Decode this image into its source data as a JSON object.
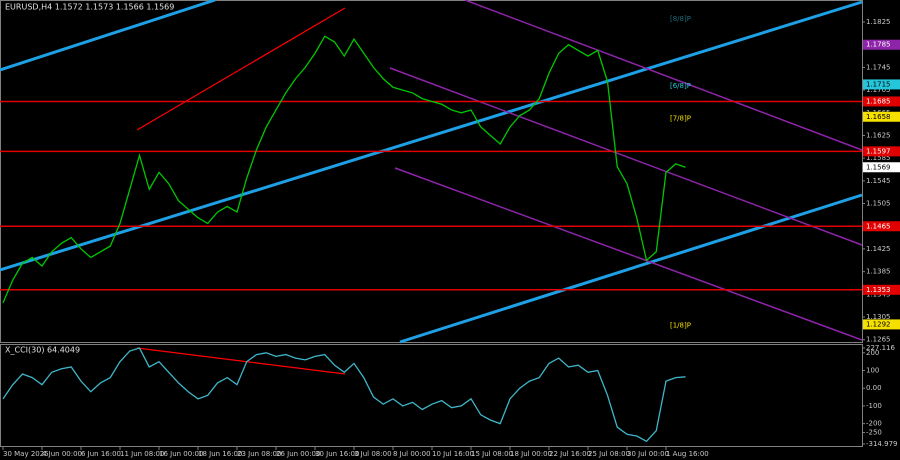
{
  "chart_data": [
    {
      "type": "line",
      "title": "EURUSD,H4  1.1572 1.1573 1.1566 1.1569",
      "categories": [
        "30 May 2025",
        null,
        null,
        null,
        "4 Jun 00:00",
        null,
        null,
        null,
        "6 Jun 16:00",
        null,
        null,
        null,
        "11 Jun 08:00",
        null,
        null,
        null,
        "16 Jun 00:00",
        null,
        null,
        null,
        "18 Jun 16:00",
        null,
        null,
        null,
        "23 Jun 08:00",
        null,
        null,
        null,
        "26 Jun 00:00",
        null,
        null,
        null,
        "30 Jun 16:00",
        null,
        null,
        null,
        "3 Jul 08:00",
        null,
        null,
        null,
        "8 Jul 00:00",
        null,
        null,
        null,
        "10 Jul 16:00",
        null,
        null,
        null,
        "15 Jul 08:00",
        null,
        null,
        null,
        "18 Jul 00:00",
        null,
        null,
        null,
        "22 Jul 16:00",
        null,
        null,
        null,
        "25 Jul 08:00",
        null,
        null,
        null,
        "30 Jul 00:00",
        null,
        null,
        null,
        "1 Aug 16:00",
        null,
        null
      ],
      "values": [
        1.133,
        1.137,
        1.14,
        1.141,
        1.1395,
        1.142,
        1.1435,
        1.1445,
        1.1425,
        1.141,
        1.142,
        1.143,
        1.147,
        1.153,
        1.159,
        1.153,
        1.156,
        1.154,
        1.151,
        1.1495,
        1.148,
        1.147,
        1.149,
        1.15,
        1.149,
        1.155,
        1.16,
        1.164,
        1.167,
        1.17,
        1.1725,
        1.1745,
        1.177,
        1.18,
        1.179,
        1.1765,
        1.1795,
        1.177,
        1.1745,
        1.1725,
        1.171,
        1.1705,
        1.17,
        1.169,
        1.1685,
        1.168,
        1.167,
        1.1665,
        1.167,
        1.164,
        1.1625,
        1.161,
        1.164,
        1.166,
        1.167,
        1.169,
        1.1735,
        1.177,
        1.1785,
        1.1775,
        1.1765,
        1.1775,
        1.172,
        1.157,
        1.154,
        1.148,
        1.1405,
        1.142,
        1.156,
        1.1575,
        1.1569
      ],
      "color": "#00c800",
      "ylim": [
        1.1261,
        1.1855
      ],
      "yticks": [
        1.1265,
        1.1305,
        1.1345,
        1.1385,
        1.1425,
        1.1465,
        1.1505,
        1.1545,
        1.1585,
        1.1625,
        1.1665,
        1.1705,
        1.1745,
        1.1785,
        1.1825
      ],
      "levels": [
        {
          "value": 1.1785,
          "color": "#8e24aa",
          "line": false
        },
        {
          "value": 1.1715,
          "color": "#26c6da",
          "line": false
        },
        {
          "value": 1.1685,
          "color": "#e00000",
          "line": true
        },
        {
          "value": 1.1658,
          "color": "#f5e000",
          "line": false
        },
        {
          "value": 1.1597,
          "color": "#e00000",
          "line": true
        },
        {
          "value": 1.1569,
          "color": "#ffffff",
          "line": false
        },
        {
          "value": 1.1465,
          "color": "#e00000",
          "line": true
        },
        {
          "value": 1.1353,
          "color": "#e00000",
          "line": true
        },
        {
          "value": 1.1292,
          "color": "#f5e000",
          "line": false
        }
      ],
      "murrey": [
        {
          "label": "[8/8]P",
          "value": 1.183,
          "color": "#1c6b7a"
        },
        {
          "label": "[6/8]P",
          "value": 1.1712,
          "color": "#26c6da"
        },
        {
          "label": "[7/8]P",
          "value": 1.1655,
          "color": "#f5e000"
        },
        {
          "label": "[1/8]P",
          "value": 1.129,
          "color": "#f5e000"
        }
      ]
    },
    {
      "type": "line",
      "title": "X_CCI(30) 64.4049",
      "values": [
        -60,
        20,
        80,
        60,
        20,
        90,
        110,
        120,
        40,
        -20,
        30,
        60,
        150,
        210,
        227,
        120,
        150,
        90,
        30,
        -20,
        -60,
        -40,
        30,
        60,
        20,
        150,
        190,
        200,
        180,
        190,
        170,
        160,
        180,
        190,
        130,
        90,
        140,
        60,
        -50,
        -90,
        -60,
        -100,
        -80,
        -120,
        -90,
        -70,
        -110,
        -100,
        -60,
        -150,
        -180,
        -200,
        -60,
        0,
        40,
        60,
        140,
        170,
        120,
        130,
        90,
        100,
        -40,
        -220,
        -260,
        -270,
        -300,
        -240,
        40,
        60,
        64.4049
      ],
      "color": "#3fb6c9",
      "ylim": [
        -314.979,
        227.116
      ],
      "yticks": [
        {
          "value": -314.979,
          "label": "-314.979"
        },
        -250,
        -200,
        -100,
        {
          "value": 0,
          "label": "0.00"
        },
        100,
        200,
        {
          "value": 227.116,
          "label": "227.116"
        }
      ]
    }
  ]
}
